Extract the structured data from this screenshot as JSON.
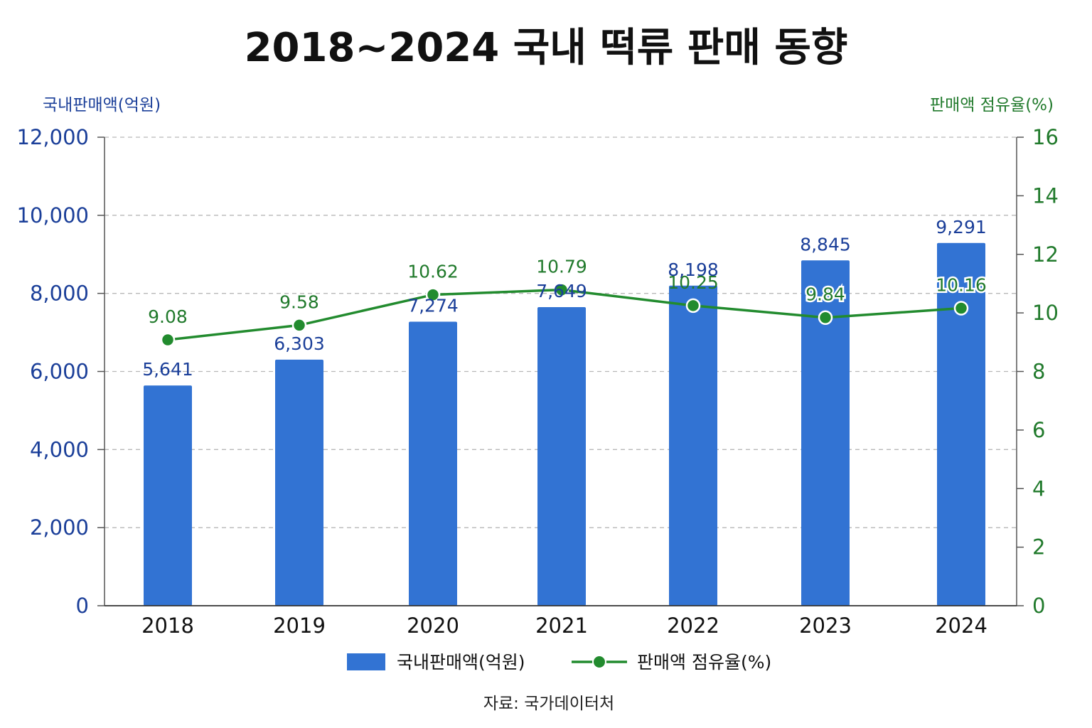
{
  "chart_data": {
    "type": "bar",
    "title": "2018~2024 국내 떡류 판매 동향",
    "categories": [
      "2018",
      "2019",
      "2020",
      "2021",
      "2022",
      "2023",
      "2024"
    ],
    "series": [
      {
        "name": "국내판매액(억원)",
        "type": "bar",
        "axis": "left",
        "values": [
          5641,
          6303,
          7274,
          7649,
          8198,
          8845,
          9291
        ],
        "labels": [
          "5,641",
          "6,303",
          "7,274",
          "7,649",
          "8,198",
          "8,845",
          "9,291"
        ],
        "color": "#3273d3"
      },
      {
        "name": "판매액 점유율(%)",
        "type": "line",
        "axis": "right",
        "values": [
          9.08,
          9.58,
          10.62,
          10.79,
          10.25,
          9.84,
          10.16
        ],
        "labels": [
          "9.08",
          "9.58",
          "10.62",
          "10.79",
          "10.25",
          "9.84",
          "10.16"
        ],
        "color": "#228b2e"
      }
    ],
    "ylabel_left": "국내판매액(억원)",
    "ylabel_right": "판매액 점유율(%)",
    "ylim_left": [
      0,
      12000
    ],
    "ylim_right": [
      0,
      16
    ],
    "yticks_left": [
      "0",
      "2,000",
      "4,000",
      "6,000",
      "8,000",
      "10,000",
      "12,000"
    ],
    "yticks_right": [
      "0",
      "2",
      "4",
      "6",
      "8",
      "10",
      "12",
      "14",
      "16"
    ],
    "grid": true,
    "legend_position": "bottom",
    "source": "자료: 국가데이터처"
  }
}
